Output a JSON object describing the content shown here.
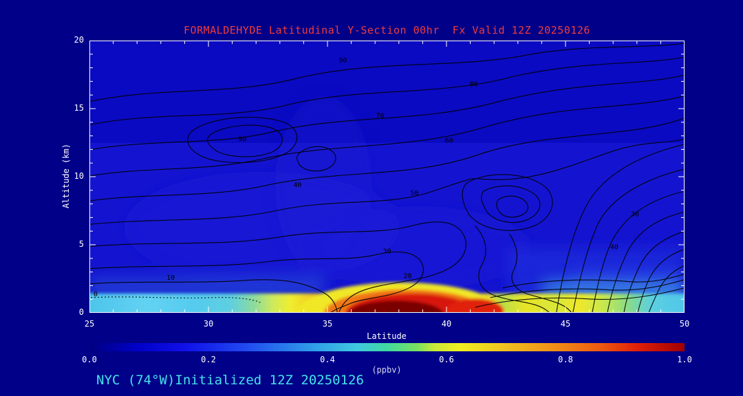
{
  "title": "FORMALDEHYDE Latitudinal Y-Section 00hr  Fx Valid 12Z 20250126",
  "footer": "NYC (74°W)Initialized 12Z 20250126",
  "axes": {
    "y_label": "Altitude (km)",
    "x_label": "Latitude",
    "y_ticks": [
      "0",
      "5",
      "10",
      "15",
      "20"
    ],
    "x_ticks": [
      "25",
      "30",
      "35",
      "40",
      "45",
      "50"
    ]
  },
  "colorbar": {
    "ticks": [
      "0.0",
      "0.2",
      "0.4",
      "0.6",
      "0.8",
      "1.0"
    ],
    "label": "(ppbv)",
    "min": 0.0,
    "max": 1.0
  },
  "colors": {
    "background": "#000089",
    "title_text": "#f03c3c",
    "axis_text": "#ffffff",
    "footer_text": "#46e2ea",
    "contour_line": "#000000",
    "fill_low": "#0a0ac2",
    "fill_mid": "#1414d0",
    "fill_cyan": "#55cbee",
    "fill_yellow": "#f0ee2e",
    "fill_red": "#d81410",
    "fill_darkred": "#7a0000"
  },
  "chart_data": {
    "type": "heatmap",
    "variable": "FORMALDEHYDE",
    "section": "Latitudinal Y-Section",
    "forecast_hour": "00hr",
    "valid": "12Z 20250126",
    "initialized": "12Z 20250126",
    "station": "NYC (74°W)",
    "units": "ppbv",
    "x_axis": {
      "label": "Latitude",
      "range": [
        25,
        50
      ],
      "ticks": [
        25,
        30,
        35,
        40,
        45,
        50
      ]
    },
    "y_axis": {
      "label": "Altitude (km)",
      "range": [
        0,
        20
      ],
      "ticks": [
        0,
        5,
        10,
        15,
        20
      ]
    },
    "colorbar": {
      "range": [
        0.0,
        1.0
      ],
      "ticks": [
        0.0,
        0.2,
        0.4,
        0.6,
        0.8,
        1.0
      ],
      "label": "(ppbv)"
    },
    "contour_levels": [
      0,
      10,
      20,
      30,
      40,
      50,
      60,
      70,
      80,
      90
    ],
    "contour_label_texts": [
      "0",
      "10",
      "20",
      "30",
      "40",
      "50",
      "60",
      "70",
      "80",
      "90",
      "90",
      "30",
      "40"
    ],
    "surface_maximum": {
      "latitude_range": [
        35.5,
        41.5
      ],
      "altitude_km": [
        0,
        1.5
      ],
      "peak_value_ppbv": 1.0
    },
    "grid": {
      "latitudes": [
        25,
        27.5,
        30,
        32.5,
        35,
        37.5,
        40,
        42.5,
        45,
        47.5,
        50
      ],
      "altitudes_km": [
        0,
        1,
        2,
        4,
        6,
        8,
        10,
        12,
        15,
        20
      ],
      "values_ppbv": [
        [
          0.35,
          0.38,
          0.34,
          0.5,
          0.75,
          1.0,
          0.95,
          0.6,
          0.6,
          0.45,
          0.35
        ],
        [
          0.3,
          0.32,
          0.3,
          0.35,
          0.5,
          0.8,
          0.7,
          0.4,
          0.4,
          0.35,
          0.3
        ],
        [
          0.15,
          0.16,
          0.15,
          0.2,
          0.25,
          0.3,
          0.3,
          0.22,
          0.2,
          0.2,
          0.15
        ],
        [
          0.12,
          0.13,
          0.13,
          0.15,
          0.18,
          0.2,
          0.22,
          0.18,
          0.16,
          0.15,
          0.12
        ],
        [
          0.1,
          0.1,
          0.11,
          0.13,
          0.15,
          0.16,
          0.18,
          0.15,
          0.13,
          0.12,
          0.1
        ],
        [
          0.08,
          0.09,
          0.1,
          0.11,
          0.13,
          0.15,
          0.16,
          0.13,
          0.11,
          0.1,
          0.09
        ],
        [
          0.07,
          0.08,
          0.09,
          0.1,
          0.12,
          0.14,
          0.15,
          0.12,
          0.1,
          0.09,
          0.08
        ],
        [
          0.06,
          0.07,
          0.08,
          0.09,
          0.1,
          0.12,
          0.12,
          0.1,
          0.09,
          0.08,
          0.07
        ],
        [
          0.05,
          0.06,
          0.06,
          0.07,
          0.08,
          0.09,
          0.09,
          0.08,
          0.07,
          0.06,
          0.05
        ],
        [
          0.04,
          0.04,
          0.05,
          0.05,
          0.06,
          0.06,
          0.06,
          0.05,
          0.05,
          0.04,
          0.04
        ]
      ]
    }
  }
}
